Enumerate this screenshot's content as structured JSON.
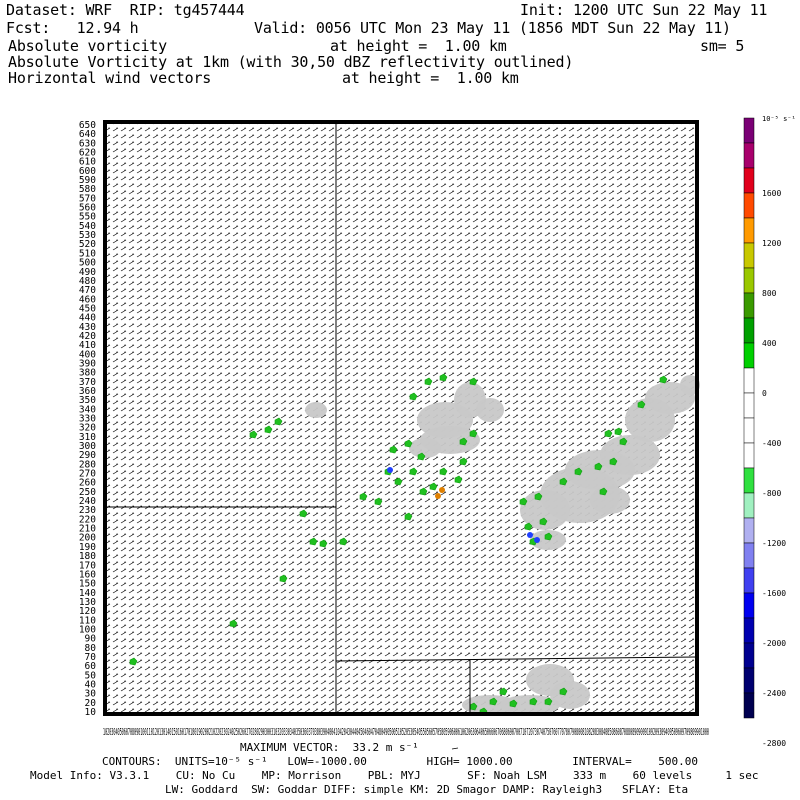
{
  "header": {
    "dataset": "Dataset: WRF  RIP: tg457444",
    "init": "Init: 1200 UTC Sun 22 May 11",
    "fcst": "Fcst:   12.94 h",
    "valid": "Valid: 0056 UTC Mon 23 May 11 (1856 MDT Sun 22 May 11)",
    "field1_name": "Absolute vorticity",
    "field1_level": "at height =  1.00 km",
    "field1_sm": "sm= 5",
    "field2_name": "Absolute Vorticity at 1km (with 30,50 dBZ reflectivity outlined)",
    "field3_name": "Horizontal wind vectors",
    "field3_level": "at height =  1.00 km"
  },
  "colorbar": {
    "units": "10⁻⁵ s⁻¹",
    "labels": [
      "1600",
      "1200",
      "800",
      "400",
      "0",
      "-400",
      "-800",
      "-1200",
      "-1600",
      "-2000",
      "-2400",
      "-2800"
    ],
    "colors": [
      "#7a0075",
      "#a8006c",
      "#e0001c",
      "#ff4a00",
      "#ff9a00",
      "#c8c800",
      "#9ac800",
      "#3a9a00",
      "#00a000",
      "#00d000",
      "#ffffff",
      "#ffffff",
      "#ffffff",
      "#ffffff",
      "#30e040",
      "#a0f0c0",
      "#b0b0f0",
      "#8080f0",
      "#4040f0",
      "#0000f0",
      "#0000b0",
      "#000090",
      "#000070",
      "#000050"
    ]
  },
  "y_axis_labels": [
    "650",
    "640",
    "630",
    "620",
    "610",
    "600",
    "590",
    "580",
    "570",
    "560",
    "550",
    "540",
    "530",
    "520",
    "510",
    "500",
    "490",
    "480",
    "470",
    "460",
    "450",
    "440",
    "430",
    "420",
    "410",
    "400",
    "390",
    "380",
    "370",
    "360",
    "350",
    "340",
    "330",
    "320",
    "310",
    "300",
    "290",
    "280",
    "270",
    "260",
    "250",
    "240",
    "230",
    "220",
    "210",
    "200",
    "190",
    "180",
    "170",
    "160",
    "150",
    "140",
    "130",
    "120",
    "110",
    "100",
    "90",
    "80",
    "70",
    "60",
    "50",
    "40",
    "30",
    "20",
    "10"
  ],
  "x_axis_text": "1020304050607080901001101201301401501601701801902002102202302402502602702802903003103203303403503603703803904004104204304404504604704804905005105205305405505605705805906006106206306406506606706806907007107207307407507607707807908008108208308408508608708808909009109209309409509609709809901000",
  "footer": {
    "max_vector": "MAXIMUM VECTOR:  33.2 m s⁻¹",
    "contours": "CONTOURS:  UNITS=10⁻⁵ s⁻¹   LOW=-1000.00         HIGH= 1000.00         INTERVAL=    500.00",
    "model_info": "Model Info: V3.3.1    CU: No Cu    MP: Morrison    PBL: MYJ       SF: Noah LSM    333 m    60 levels     1 sec",
    "model_info2": "LW: Goddard  SW: Goddar DIFF: simple KM: 2D Smagor DAMP: Rayleigh3   SFLAY: Eta"
  }
}
